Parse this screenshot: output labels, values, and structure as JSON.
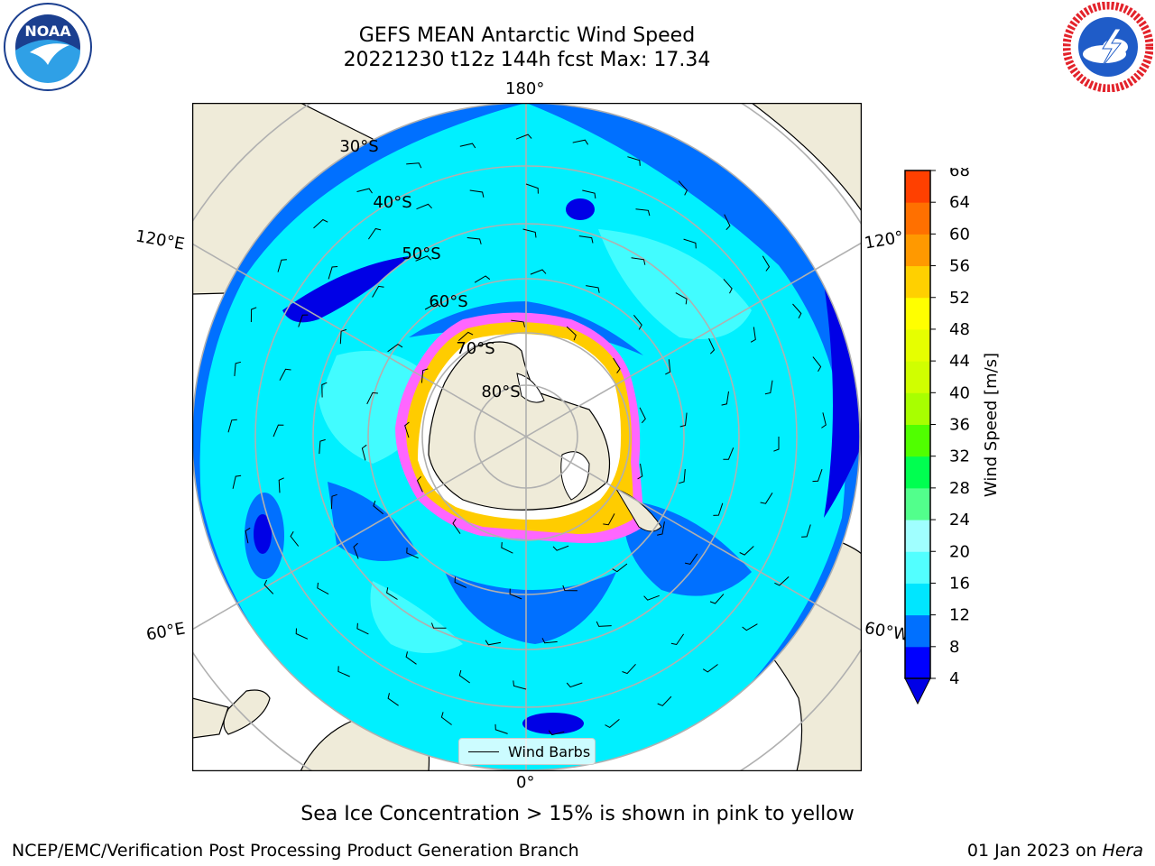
{
  "title_line1": "GEFS MEAN Antarctic Wind Speed",
  "title_line2": "20221230 t12z 144h fcst   Max: 17.34",
  "lat_labels": [
    "30°S",
    "40°S",
    "50°S",
    "60°S",
    "70°S",
    "80°S"
  ],
  "lon_labels": {
    "top": "180°",
    "bottom": "0°",
    "left_upper": "120°E",
    "left_lower": "60°E",
    "right_upper": "120°",
    "right_lower": "60°W"
  },
  "legend_label": "Wind Barbs",
  "colorbar": {
    "label": "Wind Speed [m/s]",
    "ticks": [
      "4",
      "8",
      "12",
      "16",
      "20",
      "24",
      "28",
      "32",
      "36",
      "40",
      "44",
      "48",
      "52",
      "56",
      "60",
      "64",
      "68"
    ],
    "colors": [
      "#0000ff",
      "#0070ff",
      "#00e6ff",
      "#52ffff",
      "#a0ffff",
      "#52ff8c",
      "#00ff50",
      "#50ff00",
      "#a8ff00",
      "#d0ff00",
      "#e6ff00",
      "#ffff00",
      "#ffd000",
      "#ff9900",
      "#ff7000",
      "#ff4000",
      "#ff0000"
    ],
    "under_color": "#0000e6"
  },
  "caption": "Sea Ice Concentration > 15% is shown in pink to yellow",
  "footer_left": "NCEP/EMC/Verification Post Processing Product Generation Branch",
  "footer_date": "01 Jan 2023 on ",
  "footer_machine": "Hera",
  "logos": {
    "left": "noaa-logo",
    "right": "nws-logo"
  },
  "colors": {
    "land": "#efebd9",
    "ocean_low": "#0070ff",
    "ocean_mid": "#00f0ff",
    "ice": "#ff66ff",
    "grid": "#b0b0b0"
  }
}
